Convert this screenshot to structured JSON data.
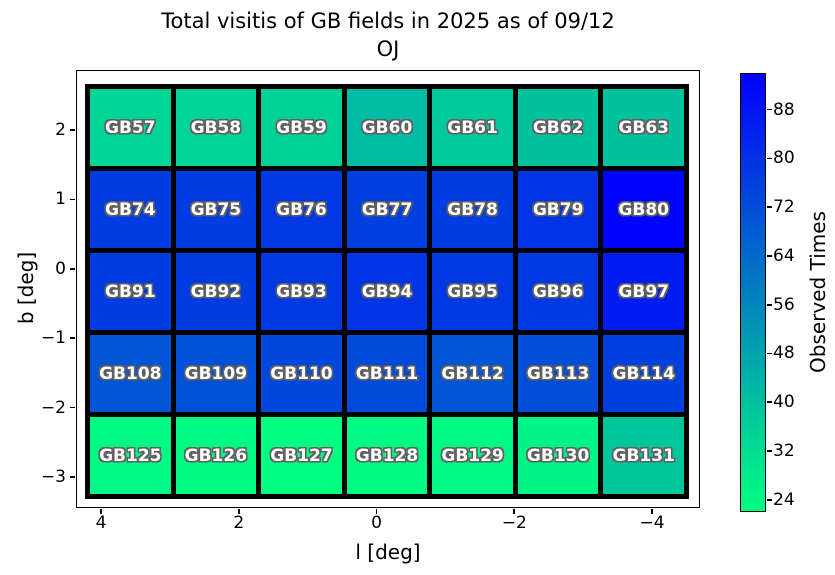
{
  "chart_data": {
    "type": "heatmap",
    "title": "Total visitis of GB fields in 2025 as of 09/12",
    "subtitle": "OJ",
    "xlabel": "l [deg]",
    "ylabel": "b [deg]",
    "x_axis_inverted": true,
    "x_range": [
      4.4,
      -4.7
    ],
    "y_range": [
      -3.45,
      2.85
    ],
    "x_ticks": [
      {
        "label": "4",
        "value": 4
      },
      {
        "label": "2",
        "value": 2
      },
      {
        "label": "0",
        "value": 0
      },
      {
        "label": "−2",
        "value": -2
      },
      {
        "label": "−4",
        "value": -4
      }
    ],
    "y_ticks": [
      {
        "label": "2",
        "value": 2
      },
      {
        "label": "1",
        "value": 1
      },
      {
        "label": "0",
        "value": 0
      },
      {
        "label": "−1",
        "value": -1
      },
      {
        "label": "−2",
        "value": -2
      },
      {
        "label": "−3",
        "value": -3
      }
    ],
    "column_l_centers": [
      3.6,
      2.35,
      1.1,
      -0.15,
      -1.4,
      -2.65,
      -3.9
    ],
    "row_b_centers": [
      2.07,
      0.87,
      -0.33,
      -1.53,
      -2.72
    ],
    "colorbar": {
      "label": "Observed Times",
      "ticks": [
        24,
        32,
        40,
        48,
        56,
        64,
        72,
        80,
        88
      ],
      "vmin": 22,
      "vmax": 94,
      "colormap": "winter_r",
      "color_low": "#00ff80",
      "color_high": "#0000ff"
    },
    "rows": [
      {
        "cells": [
          {
            "field": "GB57",
            "value": 34
          },
          {
            "field": "GB58",
            "value": 34
          },
          {
            "field": "GB59",
            "value": 35
          },
          {
            "field": "GB60",
            "value": 41
          },
          {
            "field": "GB61",
            "value": 37
          },
          {
            "field": "GB62",
            "value": 39
          },
          {
            "field": "GB63",
            "value": 39
          }
        ]
      },
      {
        "cells": [
          {
            "field": "GB74",
            "value": 77
          },
          {
            "field": "GB75",
            "value": 77
          },
          {
            "field": "GB76",
            "value": 78
          },
          {
            "field": "GB77",
            "value": 76
          },
          {
            "field": "GB78",
            "value": 77
          },
          {
            "field": "GB79",
            "value": 80
          },
          {
            "field": "GB80",
            "value": 93
          }
        ]
      },
      {
        "cells": [
          {
            "field": "GB91",
            "value": 77
          },
          {
            "field": "GB92",
            "value": 77
          },
          {
            "field": "GB93",
            "value": 78
          },
          {
            "field": "GB94",
            "value": 79
          },
          {
            "field": "GB95",
            "value": 78
          },
          {
            "field": "GB96",
            "value": 78
          },
          {
            "field": "GB97",
            "value": 86
          }
        ]
      },
      {
        "cells": [
          {
            "field": "GB108",
            "value": 70
          },
          {
            "field": "GB109",
            "value": 71
          },
          {
            "field": "GB110",
            "value": 74
          },
          {
            "field": "GB111",
            "value": 73
          },
          {
            "field": "GB112",
            "value": 70
          },
          {
            "field": "GB113",
            "value": 72
          },
          {
            "field": "GB114",
            "value": 76
          }
        ]
      },
      {
        "cells": [
          {
            "field": "GB125",
            "value": 24
          },
          {
            "field": "GB126",
            "value": 23
          },
          {
            "field": "GB127",
            "value": 22
          },
          {
            "field": "GB128",
            "value": 23
          },
          {
            "field": "GB129",
            "value": 24
          },
          {
            "field": "GB130",
            "value": 25
          },
          {
            "field": "GB131",
            "value": 38
          }
        ]
      }
    ]
  }
}
